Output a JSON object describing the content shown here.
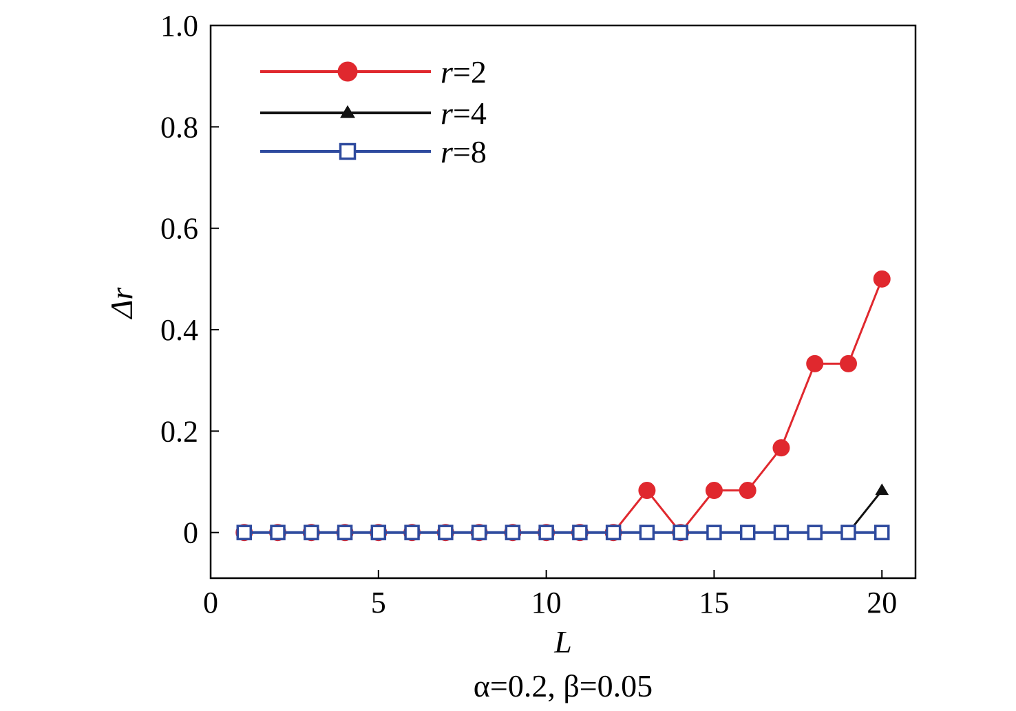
{
  "chart_data": {
    "type": "line",
    "x": [
      1,
      2,
      3,
      4,
      5,
      6,
      7,
      8,
      9,
      10,
      11,
      12,
      13,
      14,
      15,
      16,
      17,
      18,
      19,
      20
    ],
    "xlabel": "L",
    "ylabel": "Δr",
    "xlim": [
      0,
      21
    ],
    "ylim": [
      -0.09,
      1.0
    ],
    "xticks": [
      0,
      5,
      10,
      15,
      20
    ],
    "xtick_labels": [
      "0",
      "5",
      "10",
      "15",
      "20"
    ],
    "yticks": [
      0,
      0.2,
      0.4,
      0.6,
      0.8,
      1.0
    ],
    "ytick_labels": [
      "0",
      "0.2",
      "0.4",
      "0.6",
      "0.8",
      "1.0"
    ],
    "caption": "α=0.2, β=0.05",
    "grid": false,
    "legend_position": "top-left",
    "series": [
      {
        "name": "r=2",
        "legend_var": "r",
        "legend_value": "=2",
        "color": "#e0282e",
        "marker": "circle",
        "values": [
          0,
          0,
          0,
          0,
          0,
          0,
          0,
          0,
          0,
          0,
          0,
          0,
          0.083,
          0,
          0.083,
          0.083,
          0.167,
          0.333,
          0.333,
          0.5
        ]
      },
      {
        "name": "r=4",
        "legend_var": "r",
        "legend_value": "=4",
        "color": "#111111",
        "marker": "triangle",
        "values": [
          0,
          0,
          0,
          0,
          0,
          0,
          0,
          0,
          0,
          0,
          0,
          0,
          0,
          0,
          0,
          0,
          0,
          0,
          0,
          0.083
        ]
      },
      {
        "name": "r=8",
        "legend_var": "r",
        "legend_value": "=8",
        "color": "#2e4a9e",
        "marker": "square-open",
        "values": [
          0,
          0,
          0,
          0,
          0,
          0,
          0,
          0,
          0,
          0,
          0,
          0,
          0,
          0,
          0,
          0,
          0,
          0,
          0,
          0
        ]
      }
    ]
  }
}
